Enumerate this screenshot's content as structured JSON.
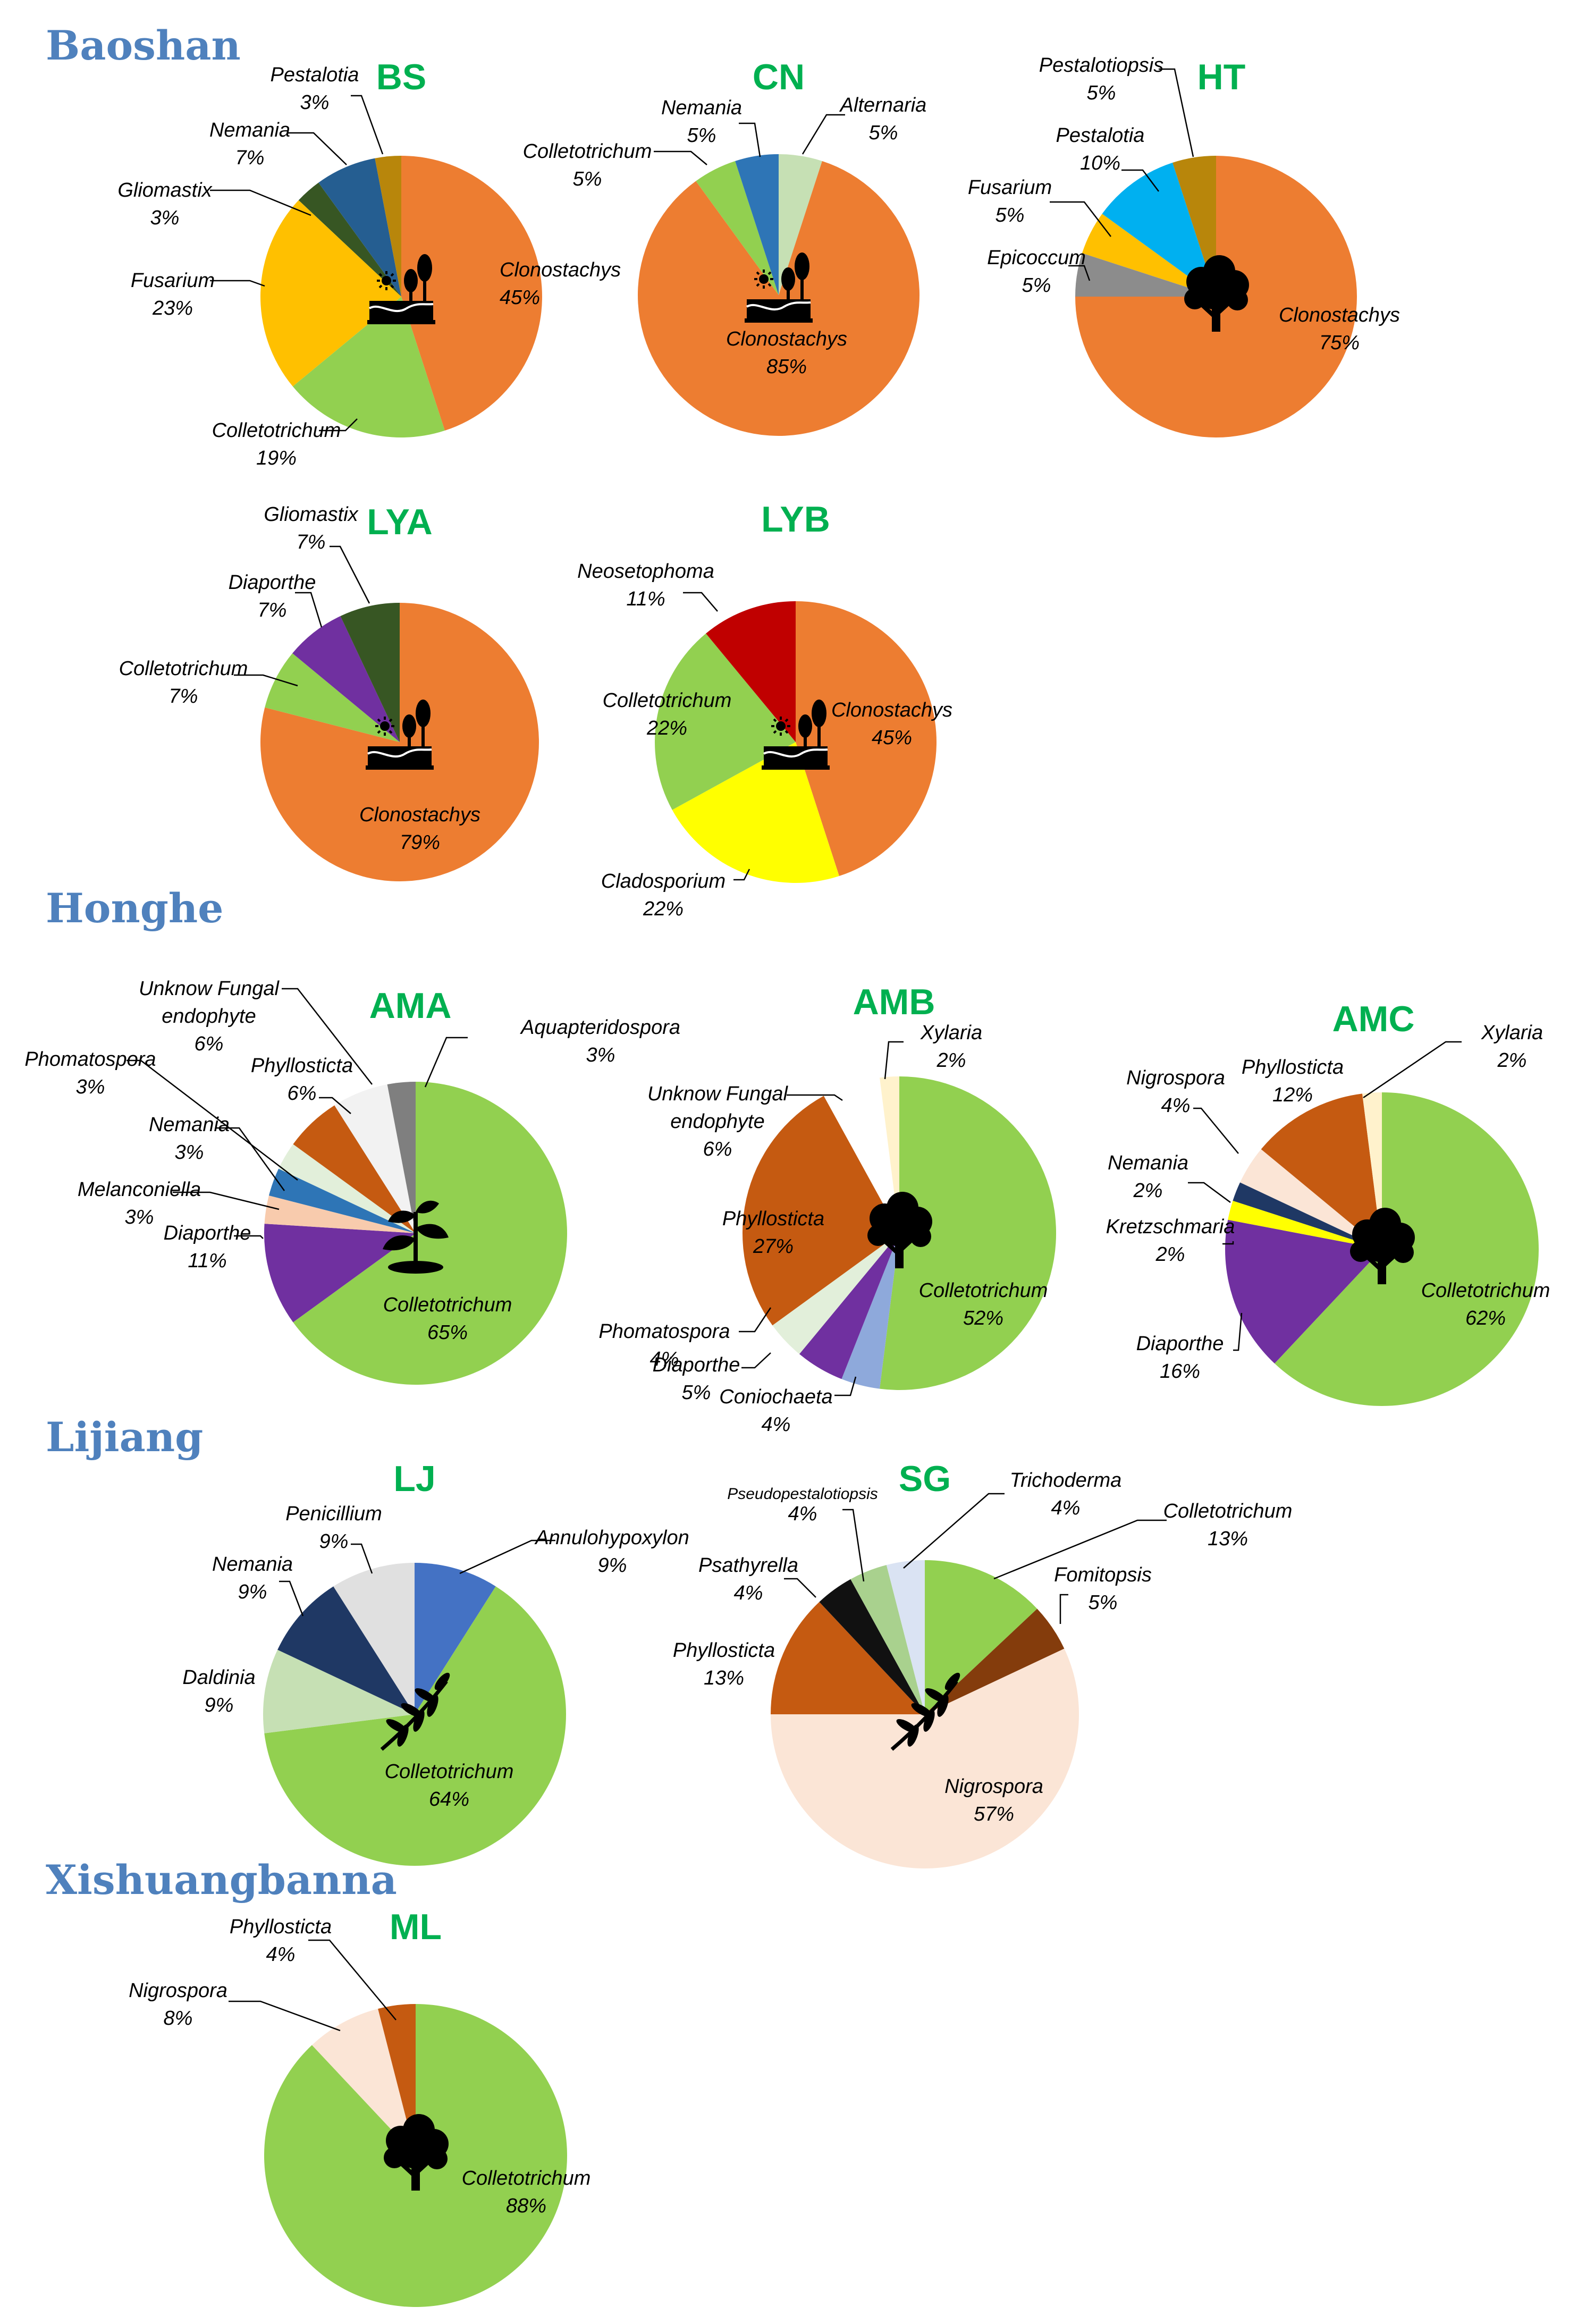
{
  "regions": [
    {
      "name": "Baoshan"
    },
    {
      "name": "Honghe"
    },
    {
      "name": "Lijiang"
    },
    {
      "name": "Xishuangbanna"
    }
  ],
  "chart_data": [
    {
      "type": "pie",
      "title": "BS",
      "region": "Baoshan",
      "icon": "sun-landscape-icon",
      "slices": [
        {
          "label": "Clonostachys",
          "pct": 45,
          "value_label": "45%",
          "color": "#ed7d31"
        },
        {
          "label": "Colletotrichum",
          "pct": 19,
          "value_label": "19%",
          "color": "#92d050"
        },
        {
          "label": "Fusarium",
          "pct": 23,
          "value_label": "23%",
          "color": "#ffc000"
        },
        {
          "label": "Gliomastix",
          "pct": 3,
          "value_label": "3%",
          "color": "#375623"
        },
        {
          "label": "Nemania",
          "pct": 7,
          "value_label": "7%",
          "color": "#255e91"
        },
        {
          "label": "Pestalotia",
          "pct": 3,
          "value_label": "3%",
          "color": "#b8860b"
        }
      ]
    },
    {
      "type": "pie",
      "title": "CN",
      "region": "Baoshan",
      "icon": "sun-landscape-icon",
      "slices": [
        {
          "label": "Alternaria",
          "pct": 5,
          "value_label": "5%",
          "color": "#c6e0b4"
        },
        {
          "label": "Clonostachys",
          "pct": 85,
          "value_label": "85%",
          "color": "#ed7d31"
        },
        {
          "label": "Colletotrichum",
          "pct": 5,
          "value_label": "5%",
          "color": "#92d050"
        },
        {
          "label": "Nemania",
          "pct": 5,
          "value_label": "5%",
          "color": "#2e75b6"
        }
      ]
    },
    {
      "type": "pie",
      "title": "HT",
      "region": "Baoshan",
      "icon": "tree-icon",
      "slices": [
        {
          "label": "Clonostachys",
          "pct": 75,
          "value_label": "75%",
          "color": "#ed7d31"
        },
        {
          "label": "Epicoccum",
          "pct": 5,
          "value_label": "5%",
          "color": "#8c8c8c"
        },
        {
          "label": "Fusarium",
          "pct": 5,
          "value_label": "5%",
          "color": "#ffc000"
        },
        {
          "label": "Pestalotia",
          "pct": 10,
          "value_label": "10%",
          "color": "#00b0f0"
        },
        {
          "label": "Pestalotiopsis",
          "pct": 5,
          "value_label": "5%",
          "color": "#b8860b"
        }
      ]
    },
    {
      "type": "pie",
      "title": "LYA",
      "region": "Baoshan",
      "icon": "sun-landscape-icon",
      "slices": [
        {
          "label": "Clonostachys",
          "pct": 79,
          "value_label": "79%",
          "color": "#ed7d31"
        },
        {
          "label": "Colletotrichum",
          "pct": 7,
          "value_label": "7%",
          "color": "#92d050"
        },
        {
          "label": "Diaporthe",
          "pct": 7,
          "value_label": "7%",
          "color": "#7030a0"
        },
        {
          "label": "Gliomastix",
          "pct": 7,
          "value_label": "7%",
          "color": "#375623"
        }
      ]
    },
    {
      "type": "pie",
      "title": "LYB",
      "region": "Baoshan",
      "icon": "sun-landscape-icon",
      "slices": [
        {
          "label": "Clonostachys",
          "pct": 45,
          "value_label": "45%",
          "color": "#ed7d31"
        },
        {
          "label": "Cladosporium",
          "pct": 22,
          "value_label": "22%",
          "color": "#ffff00"
        },
        {
          "label": "Colletotrichum",
          "pct": 22,
          "value_label": "22%",
          "color": "#92d050"
        },
        {
          "label": "Neosetophoma",
          "pct": 11,
          "value_label": "11%",
          "color": "#c00000"
        }
      ]
    },
    {
      "type": "pie",
      "title": "AMA",
      "region": "Honghe",
      "icon": "seedling-icon",
      "slices": [
        {
          "label": "Colletotrichum",
          "pct": 65,
          "value_label": "65%",
          "color": "#92d050"
        },
        {
          "label": "Diaporthe",
          "pct": 11,
          "value_label": "11%",
          "color": "#7030a0"
        },
        {
          "label": "Melanconiella",
          "pct": 3,
          "value_label": "3%",
          "color": "#f8cbad"
        },
        {
          "label": "Nemania",
          "pct": 3,
          "value_label": "3%",
          "color": "#2e75b6"
        },
        {
          "label": "Phomatospora",
          "pct": 3,
          "value_label": "3%",
          "color": "#e2efda"
        },
        {
          "label": "Phyllosticta",
          "pct": 6,
          "value_label": "6%",
          "color": "#c55a11"
        },
        {
          "label": "Unknow Fungal endophyte",
          "pct": 6,
          "value_label": "6%",
          "color": "#f2f2f2"
        },
        {
          "label": "Aquapteridospora",
          "pct": 3,
          "value_label": "3%",
          "color": "#7f7f7f"
        }
      ]
    },
    {
      "type": "pie",
      "title": "AMB",
      "region": "Honghe",
      "icon": "tree-icon",
      "slices": [
        {
          "label": "Colletotrichum",
          "pct": 52,
          "value_label": "52%",
          "color": "#92d050"
        },
        {
          "label": "Coniochaeta",
          "pct": 4,
          "value_label": "4%",
          "color": "#8ea9db"
        },
        {
          "label": "Diaporthe",
          "pct": 5,
          "value_label": "5%",
          "color": "#7030a0"
        },
        {
          "label": "Phomatospora",
          "pct": 4,
          "value_label": "4%",
          "color": "#e2efda"
        },
        {
          "label": "Phyllosticta",
          "pct": 27,
          "value_label": "27%",
          "color": "#c55a11"
        },
        {
          "label": "Unknow Fungal endophyte",
          "pct": 6,
          "value_label": "6%",
          "color": "#ffffff"
        },
        {
          "label": "Xylaria",
          "pct": 2,
          "value_label": "2%",
          "color": "#fff2cc"
        }
      ]
    },
    {
      "type": "pie",
      "title": "AMC",
      "region": "Honghe",
      "icon": "tree-icon",
      "slices": [
        {
          "label": "Colletotrichum",
          "pct": 62,
          "value_label": "62%",
          "color": "#92d050"
        },
        {
          "label": "Diaporthe",
          "pct": 16,
          "value_label": "16%",
          "color": "#7030a0"
        },
        {
          "label": "Kretzschmaria",
          "pct": 2,
          "value_label": "2%",
          "color": "#ffff00"
        },
        {
          "label": "Nemania",
          "pct": 2,
          "value_label": "2%",
          "color": "#1f3864"
        },
        {
          "label": "Nigrospora",
          "pct": 4,
          "value_label": "4%",
          "color": "#fbe5d6"
        },
        {
          "label": "Phyllosticta",
          "pct": 12,
          "value_label": "12%",
          "color": "#c55a11"
        },
        {
          "label": "Xylaria",
          "pct": 2,
          "value_label": "2%",
          "color": "#fff2cc"
        }
      ]
    },
    {
      "type": "pie",
      "title": "LJ",
      "region": "Lijiang",
      "icon": "olive-branch-icon",
      "slices": [
        {
          "label": "Annulohypoxylon",
          "pct": 9,
          "value_label": "9%",
          "color": "#4472c4"
        },
        {
          "label": "Colletotrichum",
          "pct": 64,
          "value_label": "64%",
          "color": "#92d050"
        },
        {
          "label": "Daldinia",
          "pct": 9,
          "value_label": "9%",
          "color": "#c6e0b4"
        },
        {
          "label": "Nemania",
          "pct": 9,
          "value_label": "9%",
          "color": "#1f3864"
        },
        {
          "label": "Penicillium",
          "pct": 9,
          "value_label": "9%",
          "color": "#e0e0e0"
        }
      ]
    },
    {
      "type": "pie",
      "title": "SG",
      "region": "Lijiang",
      "icon": "olive-branch-icon",
      "slices": [
        {
          "label": "Colletotrichum",
          "pct": 13,
          "value_label": "13%",
          "color": "#92d050"
        },
        {
          "label": "Fomitopsis",
          "pct": 5,
          "value_label": "5%",
          "color": "#843c0c"
        },
        {
          "label": "Nigrospora",
          "pct": 57,
          "value_label": "57%",
          "color": "#fbe5d6"
        },
        {
          "label": "Phyllosticta",
          "pct": 13,
          "value_label": "13%",
          "color": "#c55a11"
        },
        {
          "label": "Psathyrella",
          "pct": 4,
          "value_label": "4%",
          "color": "#111111"
        },
        {
          "label": "Pseudopestalotiopsis",
          "pct": 4,
          "value_label": "4%",
          "color": "#a9d18e"
        },
        {
          "label": "Trichoderma",
          "pct": 4,
          "value_label": "4%",
          "color": "#dae3f3"
        }
      ]
    },
    {
      "type": "pie",
      "title": "ML",
      "region": "Xishuangbanna",
      "icon": "tree-icon",
      "slices": [
        {
          "label": "Colletotrichum",
          "pct": 88,
          "value_label": "88%",
          "color": "#92d050"
        },
        {
          "label": "Nigrospora",
          "pct": 8,
          "value_label": "8%",
          "color": "#fbe5d6"
        },
        {
          "label": "Phyllosticta",
          "pct": 4,
          "value_label": "4%",
          "color": "#c55a11"
        }
      ]
    }
  ]
}
